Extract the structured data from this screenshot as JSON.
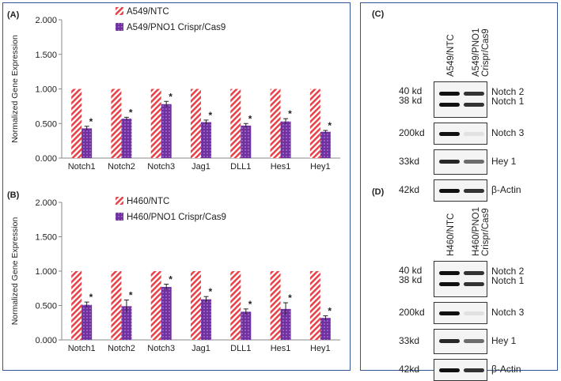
{
  "chart_data": [
    {
      "type": "bar",
      "panel": "(A)",
      "ylabel": "Normalized Gene Expression",
      "xlabel": "",
      "ylim": [
        0,
        2
      ],
      "yticks": [
        "0.000",
        "0.500",
        "1.000",
        "1.500",
        "2.000"
      ],
      "categories": [
        "Notch1",
        "Notch2",
        "Notch3",
        "Jag1",
        "DLL1",
        "Hes1",
        "Hey1"
      ],
      "series": [
        {
          "name": "A549/NTC",
          "values": [
            1,
            1,
            1,
            1,
            1,
            1,
            1
          ],
          "color": "#e8434a",
          "pattern": "diagonal-stripes"
        },
        {
          "name": "A549/PNO1 Crispr/Cas9",
          "values": [
            0.43,
            0.57,
            0.78,
            0.52,
            0.47,
            0.53,
            0.38
          ],
          "errors": [
            0.03,
            0.02,
            0.04,
            0.03,
            0.03,
            0.04,
            0.02
          ],
          "color": "#7030a0",
          "pattern": "dots"
        }
      ],
      "significance": [
        "*",
        "*",
        "*",
        "*",
        "*",
        "*",
        "*"
      ],
      "legend": "top"
    },
    {
      "type": "bar",
      "panel": "(B)",
      "ylabel": "Normalized Gene Expression",
      "xlabel": "",
      "ylim": [
        0,
        2
      ],
      "yticks": [
        "0.000",
        "0.500",
        "1.000",
        "1.500",
        "2.000"
      ],
      "categories": [
        "Notch1",
        "Notch2",
        "Notch3",
        "Jag1",
        "DLL1",
        "Hes1",
        "Hey1"
      ],
      "series": [
        {
          "name": "H460/NTC",
          "values": [
            1,
            1,
            1,
            1,
            1,
            1,
            1
          ],
          "color": "#e8434a",
          "pattern": "diagonal-stripes"
        },
        {
          "name": "H460/PNO1 Crispr/Cas9",
          "values": [
            0.51,
            0.49,
            0.77,
            0.59,
            0.41,
            0.45,
            0.32
          ],
          "errors": [
            0.04,
            0.09,
            0.04,
            0.04,
            0.04,
            0.09,
            0.03
          ],
          "color": "#7030a0",
          "pattern": "dots"
        }
      ],
      "significance": [
        "*",
        "*",
        "*",
        "*",
        "*",
        "*",
        "*"
      ],
      "legend": "top"
    }
  ],
  "blots": [
    {
      "panel": "(C)",
      "lanes": [
        "A549/NTC",
        "A549/PNO1 Crispr/Cas9"
      ],
      "rows": [
        {
          "mw": [
            "40 kd",
            "38 kd"
          ],
          "labels": [
            "Notch 2",
            "Notch 1"
          ]
        },
        {
          "mw": [
            "200kd"
          ],
          "labels": [
            "Notch 3"
          ]
        },
        {
          "mw": [
            "33kd"
          ],
          "labels": [
            "Hey 1"
          ]
        },
        {
          "mw": [
            "42kd"
          ],
          "labels": [
            "β-Actin"
          ]
        }
      ]
    },
    {
      "panel": "(D)",
      "lanes": [
        "H460/NTC",
        "H460/PNO1 Crispr/Cas9"
      ],
      "rows": [
        {
          "mw": [
            "40 kd",
            "38 kd"
          ],
          "labels": [
            "Notch 2",
            "Notch 1"
          ]
        },
        {
          "mw": [
            "200kd"
          ],
          "labels": [
            "Notch 3"
          ]
        },
        {
          "mw": [
            "33kd"
          ],
          "labels": [
            "Hey 1"
          ]
        },
        {
          "mw": [
            "42kd"
          ],
          "labels": [
            "β-Actin"
          ]
        }
      ]
    }
  ]
}
